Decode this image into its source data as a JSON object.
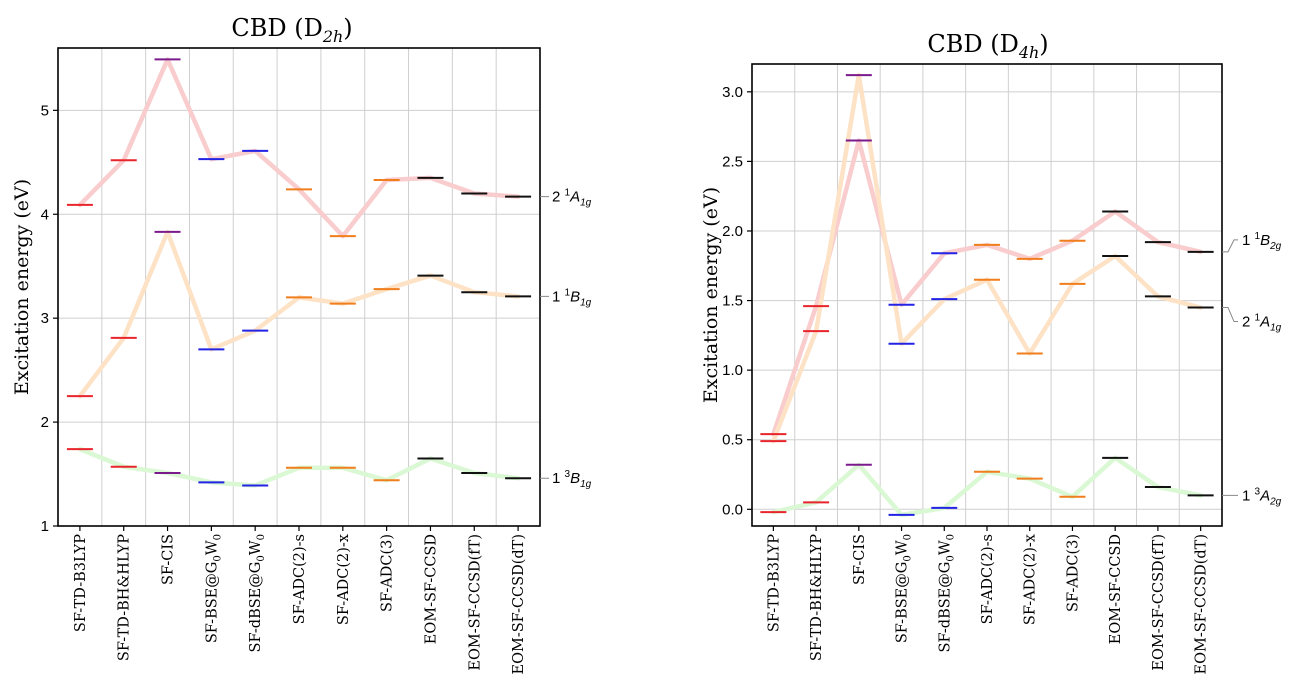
{
  "chart_data": [
    {
      "type": "line",
      "title": "CBD (D2h)",
      "title_main": "CBD (D",
      "title_sub": "2h",
      "title_close": ")",
      "ylabel": "Excitation energy (eV)",
      "ylim": [
        1.0,
        5.6
      ],
      "yticks": [
        1,
        2,
        3,
        4,
        5
      ],
      "grid": true,
      "categories": [
        "SF-TD-B3LYP",
        "SF-TD-BH&HLYP",
        "SF-CIS",
        "SF-BSE@G0W0",
        "SF-dBSE@G0W0",
        "SF-ADC(2)-s",
        "SF-ADC(2)-x",
        "SF-ADC(3)",
        "EOM-SF-CCSD",
        "EOM-SF-CCSD(fT)",
        "EOM-SF-CCSD(dT)"
      ],
      "category_labels": [
        {
          "main": "SF-TD-B3LYP"
        },
        {
          "main": "SF-TD-BH&HLYP"
        },
        {
          "main": "SF-CIS"
        },
        {
          "main": "SF-BSE@G",
          "sub1": "0",
          "mid": "W",
          "sub2": "0"
        },
        {
          "main": "SF-dBSE@G",
          "sub1": "0",
          "mid": "W",
          "sub2": "0"
        },
        {
          "main": "SF-ADC(2)-s"
        },
        {
          "main": "SF-ADC(2)-x"
        },
        {
          "main": "SF-ADC(3)"
        },
        {
          "main": "EOM-SF-CCSD"
        },
        {
          "main": "EOM-SF-CCSD(fT)"
        },
        {
          "main": "EOM-SF-CCSD(dT)"
        }
      ],
      "marker_colors": [
        "#e8242c",
        "#e8242c",
        "#7b1a8c",
        "#2323e6",
        "#2323e6",
        "#f07e1c",
        "#f07e1c",
        "#f07e1c",
        "#111111",
        "#111111",
        "#111111"
      ],
      "series": [
        {
          "name": "2 1A1g",
          "label": {
            "num": "2",
            "sup": "1",
            "letter": "A",
            "sub": "1g"
          },
          "color": "#f9cccd",
          "values": [
            4.09,
            4.52,
            5.49,
            4.53,
            4.61,
            4.24,
            3.79,
            4.33,
            4.35,
            4.2,
            4.17
          ]
        },
        {
          "name": "1 1B1g",
          "label": {
            "num": "1",
            "sup": "1",
            "letter": "B",
            "sub": "1g"
          },
          "color": "#fde2c6",
          "values": [
            2.25,
            2.81,
            3.83,
            2.7,
            2.88,
            3.2,
            3.14,
            3.28,
            3.41,
            3.25,
            3.21
          ]
        },
        {
          "name": "1 3B1g",
          "label": {
            "num": "1",
            "sup": "3",
            "letter": "B",
            "sub": "1g"
          },
          "color": "#d9f8d3",
          "values": [
            1.74,
            1.57,
            1.51,
            1.42,
            1.39,
            1.56,
            1.56,
            1.44,
            1.65,
            1.51,
            1.46
          ]
        }
      ]
    },
    {
      "type": "line",
      "title": "CBD (D4h)",
      "title_main": "CBD (D",
      "title_sub": "4h",
      "title_close": ")",
      "ylabel": "Excitation energy (eV)",
      "ylim": [
        -0.12,
        3.2
      ],
      "yticks": [
        "0.0",
        "0.5",
        "1.0",
        "1.5",
        "2.0",
        "2.5",
        "3.0"
      ],
      "grid": true,
      "categories": [
        "SF-TD-B3LYP",
        "SF-TD-BH&HLYP",
        "SF-CIS",
        "SF-BSE@G0W0",
        "SF-dBSE@G0W0",
        "SF-ADC(2)-s",
        "SF-ADC(2)-x",
        "SF-ADC(3)",
        "EOM-SF-CCSD",
        "EOM-SF-CCSD(fT)",
        "EOM-SF-CCSD(dT)"
      ],
      "category_labels": [
        {
          "main": "SF-TD-B3LYP"
        },
        {
          "main": "SF-TD-BH&HLYP"
        },
        {
          "main": "SF-CIS"
        },
        {
          "main": "SF-BSE@G",
          "sub1": "0",
          "mid": "W",
          "sub2": "0"
        },
        {
          "main": "SF-dBSE@G",
          "sub1": "0",
          "mid": "W",
          "sub2": "0"
        },
        {
          "main": "SF-ADC(2)-s"
        },
        {
          "main": "SF-ADC(2)-x"
        },
        {
          "main": "SF-ADC(3)"
        },
        {
          "main": "EOM-SF-CCSD"
        },
        {
          "main": "EOM-SF-CCSD(fT)"
        },
        {
          "main": "EOM-SF-CCSD(dT)"
        }
      ],
      "marker_colors": [
        "#e8242c",
        "#e8242c",
        "#7b1a8c",
        "#2323e6",
        "#2323e6",
        "#f07e1c",
        "#f07e1c",
        "#f07e1c",
        "#111111",
        "#111111",
        "#111111"
      ],
      "series": [
        {
          "name": "1 1B2g",
          "label": {
            "num": "1",
            "sup": "1",
            "letter": "B",
            "sub": "2g"
          },
          "color": "#f9cccd",
          "values": [
            0.54,
            1.46,
            2.65,
            1.47,
            1.84,
            1.9,
            1.8,
            1.93,
            2.14,
            1.92,
            1.85
          ]
        },
        {
          "name": "2 1A1g",
          "label": {
            "num": "2",
            "sup": "1",
            "letter": "A",
            "sub": "1g"
          },
          "color": "#fde2c6",
          "values": [
            0.49,
            1.28,
            3.12,
            1.19,
            1.51,
            1.65,
            1.12,
            1.62,
            1.82,
            1.53,
            1.45
          ]
        },
        {
          "name": "1 3A2g",
          "label": {
            "num": "1",
            "sup": "3",
            "letter": "A",
            "sub": "2g"
          },
          "color": "#d9f8d3",
          "values": [
            -0.02,
            0.05,
            0.32,
            -0.04,
            0.01,
            0.27,
            0.22,
            0.09,
            0.37,
            0.16,
            0.1
          ]
        }
      ]
    }
  ]
}
